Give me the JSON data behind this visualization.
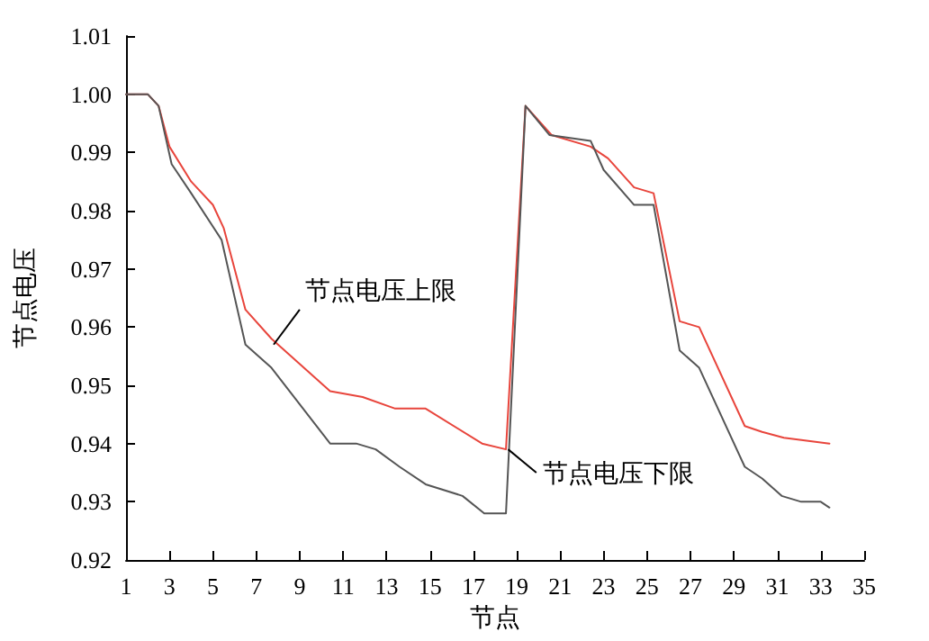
{
  "chart_data": {
    "type": "line",
    "xlabel": "节点",
    "ylabel": "节点电压",
    "xlim": [
      1,
      35
    ],
    "xticks": [
      1,
      3,
      5,
      7,
      9,
      11,
      13,
      15,
      17,
      19,
      21,
      23,
      25,
      27,
      29,
      31,
      33,
      35
    ],
    "ylim": [
      0.92,
      1.01
    ],
    "yticks": [
      0.92,
      0.93,
      0.94,
      0.95,
      0.96,
      0.97,
      0.98,
      0.99,
      {
        "value": 1,
        "label": "1.00"
      },
      1.01
    ],
    "grid": false,
    "marker": "none",
    "line_style": "solid",
    "series": [
      {
        "color": "#e8453c",
        "x": [
          1,
          2,
          2.5,
          3,
          4,
          5,
          5.5,
          6.5,
          7.7,
          10.4,
          11.9,
          13.4,
          14.8,
          17.4,
          18.5,
          19.4,
          20.6,
          22.4,
          23.2,
          24.4,
          25.3,
          26.5,
          27.4,
          29.5,
          30.3,
          31.3,
          33.4
        ],
        "values": [
          1.0,
          1.0,
          0.998,
          0.991,
          0.985,
          0.981,
          0.977,
          0.963,
          0.958,
          0.949,
          0.948,
          0.946,
          0.946,
          0.94,
          0.939,
          0.998,
          0.993,
          0.991,
          0.989,
          0.984,
          0.983,
          0.961,
          0.96,
          0.943,
          0.942,
          0.941,
          0.94
        ]
      },
      {
        "color": "#555555",
        "x": [
          1,
          2,
          2.5,
          3.1,
          4,
          5.4,
          6.5,
          7.7,
          10.4,
          11.6,
          12.5,
          13.6,
          14.8,
          16.5,
          17.5,
          18.5,
          19.4,
          20.5,
          22.4,
          23,
          24.4,
          25.3,
          26.5,
          27.4,
          29.5,
          30.3,
          31.2,
          32.1,
          33,
          33.4
        ],
        "values": [
          1.0,
          1.0,
          0.998,
          0.988,
          0.983,
          0.975,
          0.957,
          0.953,
          0.94,
          0.94,
          0.939,
          0.936,
          0.933,
          0.931,
          0.928,
          0.928,
          0.998,
          0.993,
          0.992,
          0.987,
          0.981,
          0.981,
          0.956,
          0.953,
          0.936,
          0.934,
          0.931,
          0.93,
          0.93,
          0.929
        ]
      }
    ],
    "annotations": [
      {
        "text": "节点电压上限",
        "x": 7.8,
        "y": 0.957
      },
      {
        "text": "节点电压下限",
        "x": 18.6,
        "y": 0.939
      }
    ]
  }
}
